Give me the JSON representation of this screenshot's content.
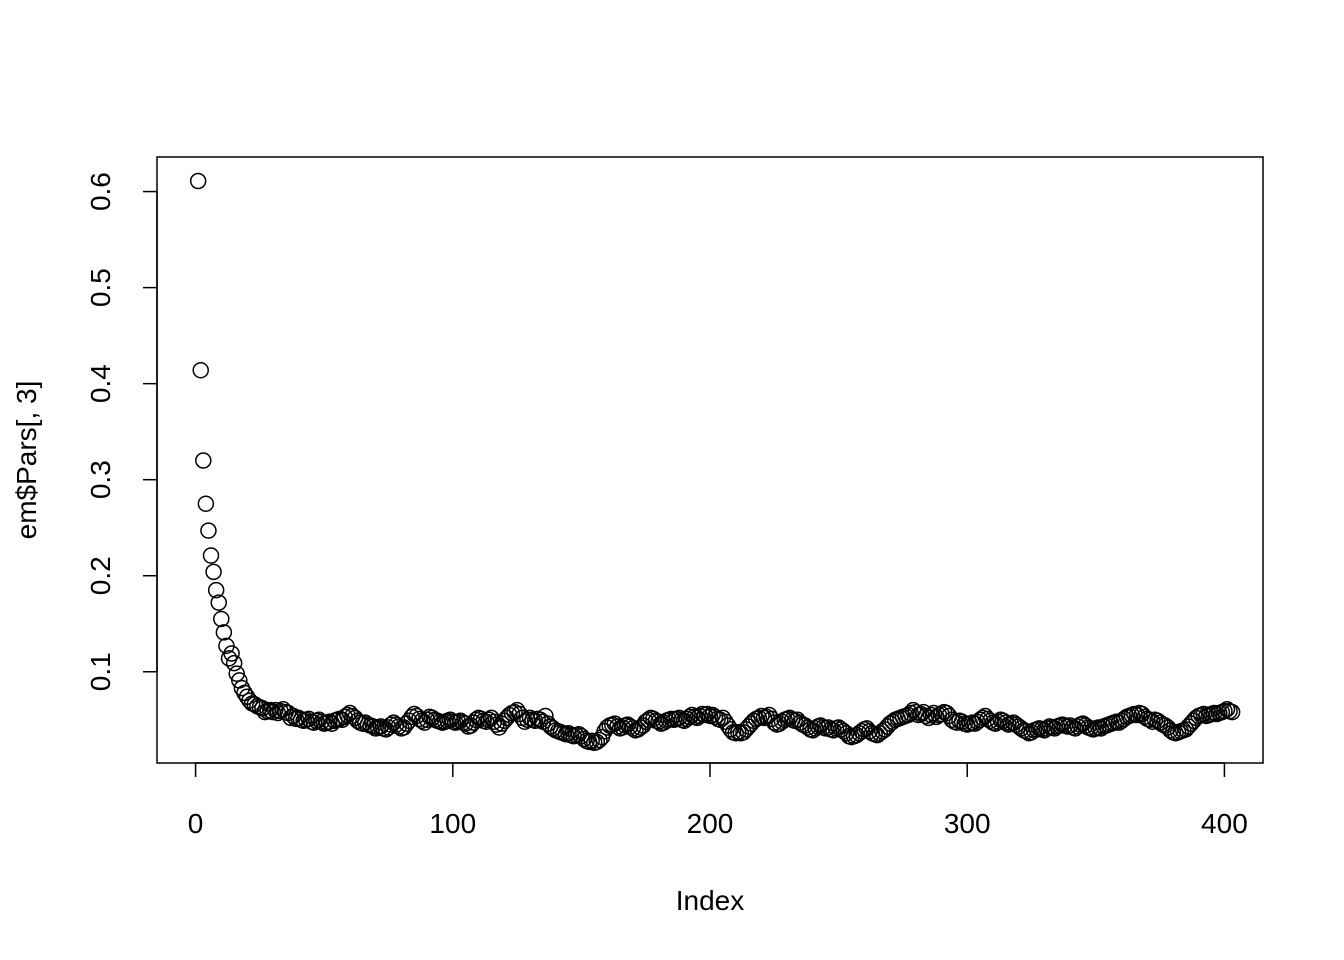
{
  "chart_data": {
    "type": "scatter",
    "title": "",
    "xlabel": "Index",
    "ylabel": "em$Pars[, 3]",
    "xlim": [
      -15,
      415
    ],
    "ylim": [
      0.005,
      0.636
    ],
    "x_ticks": [
      0,
      100,
      200,
      300,
      400
    ],
    "x_tick_labels": [
      "0",
      "100",
      "200",
      "300",
      "400"
    ],
    "y_ticks": [
      0.1,
      0.2,
      0.3,
      0.4,
      0.5,
      0.6
    ],
    "y_tick_labels": [
      "0.1",
      "0.2",
      "0.3",
      "0.4",
      "0.5",
      "0.6"
    ],
    "grid": false,
    "marker": "open-circle",
    "color": "#000000",
    "x_start": 1,
    "y": [
      0.611,
      0.414,
      0.32,
      0.275,
      0.247,
      0.221,
      0.204,
      0.185,
      0.172,
      0.155,
      0.141,
      0.127,
      0.114,
      0.119,
      0.109,
      0.098,
      0.091,
      0.083,
      0.078,
      0.074,
      0.07,
      0.067,
      0.066,
      0.064,
      0.063,
      0.062,
      0.058,
      0.059,
      0.06,
      0.058,
      0.06,
      0.057,
      0.059,
      0.061,
      0.058,
      0.057,
      0.052,
      0.054,
      0.051,
      0.052,
      0.05,
      0.049,
      0.05,
      0.051,
      0.048,
      0.047,
      0.049,
      0.05,
      0.048,
      0.046,
      0.047,
      0.048,
      0.046,
      0.049,
      0.05,
      0.051,
      0.05,
      0.053,
      0.055,
      0.057,
      0.054,
      0.052,
      0.049,
      0.047,
      0.046,
      0.047,
      0.045,
      0.044,
      0.043,
      0.041,
      0.042,
      0.043,
      0.041,
      0.04,
      0.042,
      0.045,
      0.047,
      0.045,
      0.043,
      0.041,
      0.042,
      0.046,
      0.049,
      0.053,
      0.056,
      0.054,
      0.051,
      0.049,
      0.047,
      0.05,
      0.053,
      0.052,
      0.05,
      0.049,
      0.048,
      0.047,
      0.048,
      0.049,
      0.05,
      0.048,
      0.047,
      0.048,
      0.049,
      0.047,
      0.046,
      0.043,
      0.044,
      0.047,
      0.05,
      0.052,
      0.051,
      0.049,
      0.048,
      0.05,
      0.052,
      0.048,
      0.045,
      0.042,
      0.046,
      0.049,
      0.052,
      0.055,
      0.057,
      0.058,
      0.06,
      0.056,
      0.052,
      0.048,
      0.05,
      0.052,
      0.05,
      0.049,
      0.051,
      0.05,
      0.048,
      0.054,
      0.046,
      0.043,
      0.041,
      0.039,
      0.038,
      0.037,
      0.036,
      0.035,
      0.036,
      0.034,
      0.033,
      0.034,
      0.035,
      0.033,
      0.03,
      0.028,
      0.027,
      0.028,
      0.026,
      0.027,
      0.029,
      0.032,
      0.038,
      0.042,
      0.044,
      0.045,
      0.046,
      0.043,
      0.041,
      0.042,
      0.044,
      0.045,
      0.043,
      0.041,
      0.039,
      0.04,
      0.042,
      0.044,
      0.048,
      0.05,
      0.052,
      0.051,
      0.049,
      0.048,
      0.046,
      0.047,
      0.049,
      0.05,
      0.051,
      0.05,
      0.051,
      0.052,
      0.05,
      0.049,
      0.051,
      0.053,
      0.055,
      0.053,
      0.052,
      0.054,
      0.056,
      0.055,
      0.056,
      0.054,
      0.055,
      0.053,
      0.051,
      0.05,
      0.052,
      0.048,
      0.044,
      0.04,
      0.037,
      0.036,
      0.037,
      0.036,
      0.037,
      0.04,
      0.043,
      0.046,
      0.049,
      0.051,
      0.052,
      0.054,
      0.052,
      0.053,
      0.055,
      0.051,
      0.047,
      0.045,
      0.046,
      0.048,
      0.05,
      0.051,
      0.052,
      0.05,
      0.049,
      0.05,
      0.047,
      0.045,
      0.044,
      0.042,
      0.04,
      0.039,
      0.041,
      0.043,
      0.044,
      0.042,
      0.041,
      0.042,
      0.04,
      0.039,
      0.041,
      0.042,
      0.04,
      0.038,
      0.036,
      0.033,
      0.032,
      0.033,
      0.034,
      0.036,
      0.038,
      0.04,
      0.041,
      0.038,
      0.036,
      0.035,
      0.034,
      0.036,
      0.038,
      0.04,
      0.043,
      0.046,
      0.048,
      0.05,
      0.051,
      0.052,
      0.053,
      0.054,
      0.055,
      0.057,
      0.06,
      0.058,
      0.055,
      0.056,
      0.058,
      0.054,
      0.052,
      0.055,
      0.057,
      0.053,
      0.055,
      0.056,
      0.058,
      0.057,
      0.054,
      0.05,
      0.048,
      0.047,
      0.049,
      0.048,
      0.046,
      0.045,
      0.046,
      0.047,
      0.046,
      0.048,
      0.05,
      0.052,
      0.054,
      0.051,
      0.049,
      0.047,
      0.046,
      0.048,
      0.05,
      0.049,
      0.047,
      0.045,
      0.046,
      0.047,
      0.045,
      0.043,
      0.041,
      0.039,
      0.038,
      0.036,
      0.037,
      0.039,
      0.04,
      0.041,
      0.04,
      0.039,
      0.041,
      0.043,
      0.042,
      0.041,
      0.043,
      0.044,
      0.045,
      0.044,
      0.043,
      0.044,
      0.042,
      0.041,
      0.043,
      0.045,
      0.046,
      0.044,
      0.042,
      0.041,
      0.04,
      0.041,
      0.042,
      0.041,
      0.043,
      0.044,
      0.045,
      0.046,
      0.047,
      0.048,
      0.047,
      0.049,
      0.051,
      0.053,
      0.054,
      0.055,
      0.056,
      0.055,
      0.057,
      0.056,
      0.053,
      0.051,
      0.05,
      0.048,
      0.05,
      0.049,
      0.047,
      0.045,
      0.044,
      0.042,
      0.039,
      0.037,
      0.036,
      0.037,
      0.038,
      0.039,
      0.04,
      0.043,
      0.046,
      0.049,
      0.052,
      0.054,
      0.055,
      0.056,
      0.054,
      0.055,
      0.056,
      0.057,
      0.056,
      0.057,
      0.058,
      0.059,
      0.061,
      0.059,
      0.058
    ]
  }
}
